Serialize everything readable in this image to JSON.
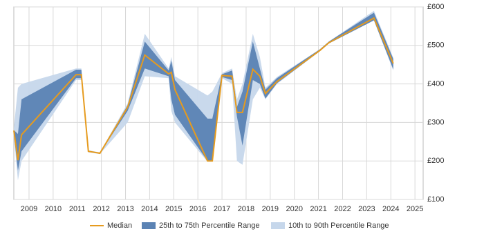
{
  "chart_data": {
    "type": "band-line",
    "x": [
      2008.37,
      2008.54,
      2008.69,
      2010.95,
      2011.17,
      2011.46,
      2011.94,
      2013.09,
      2013.8,
      2014.79,
      2014.9,
      2015.05,
      2016.4,
      2016.6,
      2017.0,
      2017.42,
      2017.62,
      2017.85,
      2018.28,
      2018.57,
      2018.8,
      2019.28,
      2021.06,
      2021.43,
      2023.3,
      2024.1
    ],
    "series": [
      {
        "name": "Median",
        "color": "#e69b1e",
        "values": [
          279,
          202,
          268,
          424,
          424,
          225,
          220,
          340,
          475,
          426,
          430,
          385,
          200,
          200,
          422,
          420,
          326,
          326,
          438,
          420,
          375,
          406,
          487,
          507,
          571,
          453
        ]
      },
      {
        "name": "25th to 75th Percentile Range",
        "color": "#5b83b4",
        "low": [
          270,
          175,
          225,
          415,
          415,
          225,
          220,
          330,
          440,
          420,
          360,
          320,
          200,
          200,
          418,
          410,
          315,
          240,
          410,
          400,
          362,
          402,
          485,
          505,
          565,
          438
        ],
        "high": [
          280,
          270,
          360,
          437,
          437,
          225,
          220,
          345,
          510,
          435,
          460,
          410,
          310,
          310,
          425,
          435,
          340,
          380,
          510,
          440,
          385,
          415,
          490,
          510,
          585,
          465
        ]
      },
      {
        "name": "10th to 90th Percentile Range",
        "color": "#c6d7eb",
        "low": [
          265,
          150,
          200,
          410,
          410,
          222,
          218,
          300,
          420,
          415,
          330,
          300,
          198,
          198,
          415,
          400,
          200,
          190,
          360,
          390,
          360,
          400,
          485,
          505,
          565,
          435
        ],
        "high": [
          285,
          390,
          400,
          440,
          440,
          228,
          222,
          350,
          530,
          440,
          470,
          420,
          370,
          380,
          428,
          440,
          360,
          400,
          530,
          470,
          390,
          418,
          490,
          510,
          590,
          468
        ]
      }
    ],
    "xlim": [
      2008.37,
      2025.34
    ],
    "xticks": [
      2009,
      2010,
      2011,
      2012,
      2013,
      2014,
      2015,
      2016,
      2017,
      2018,
      2019,
      2020,
      2021,
      2022,
      2023,
      2024,
      2025
    ],
    "ylim": [
      100,
      600
    ],
    "yticks": [
      {
        "value": 100,
        "label": "£100"
      },
      {
        "value": 200,
        "label": "£200"
      },
      {
        "value": 300,
        "label": "£300"
      },
      {
        "value": 400,
        "label": "£400"
      },
      {
        "value": 500,
        "label": "£500"
      },
      {
        "value": 600,
        "label": "£600"
      }
    ],
    "grid": true
  }
}
